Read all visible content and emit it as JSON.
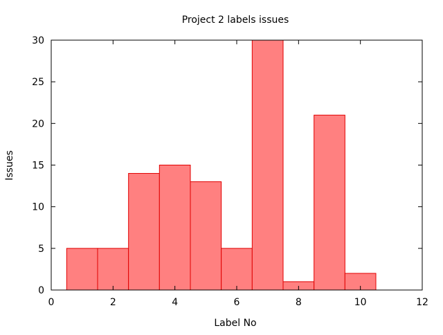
{
  "chart_data": {
    "type": "bar",
    "title": "Project 2 labels issues",
    "xlabel": "Label No",
    "ylabel": "Issues",
    "xlim": [
      0,
      12
    ],
    "ylim": [
      0,
      30
    ],
    "xticks": [
      0,
      2,
      4,
      6,
      8,
      10,
      12
    ],
    "yticks": [
      0,
      5,
      10,
      15,
      20,
      25,
      30
    ],
    "bar_width": 1,
    "x": [
      1,
      2,
      3,
      4,
      5,
      6,
      7,
      8,
      9,
      10
    ],
    "values": [
      5,
      5,
      14,
      15,
      13,
      5,
      30,
      1,
      21,
      2
    ],
    "grid": false,
    "colors": {
      "bar_fill": "#ff8080",
      "bar_stroke": "#e00000",
      "axis": "#000000"
    }
  }
}
